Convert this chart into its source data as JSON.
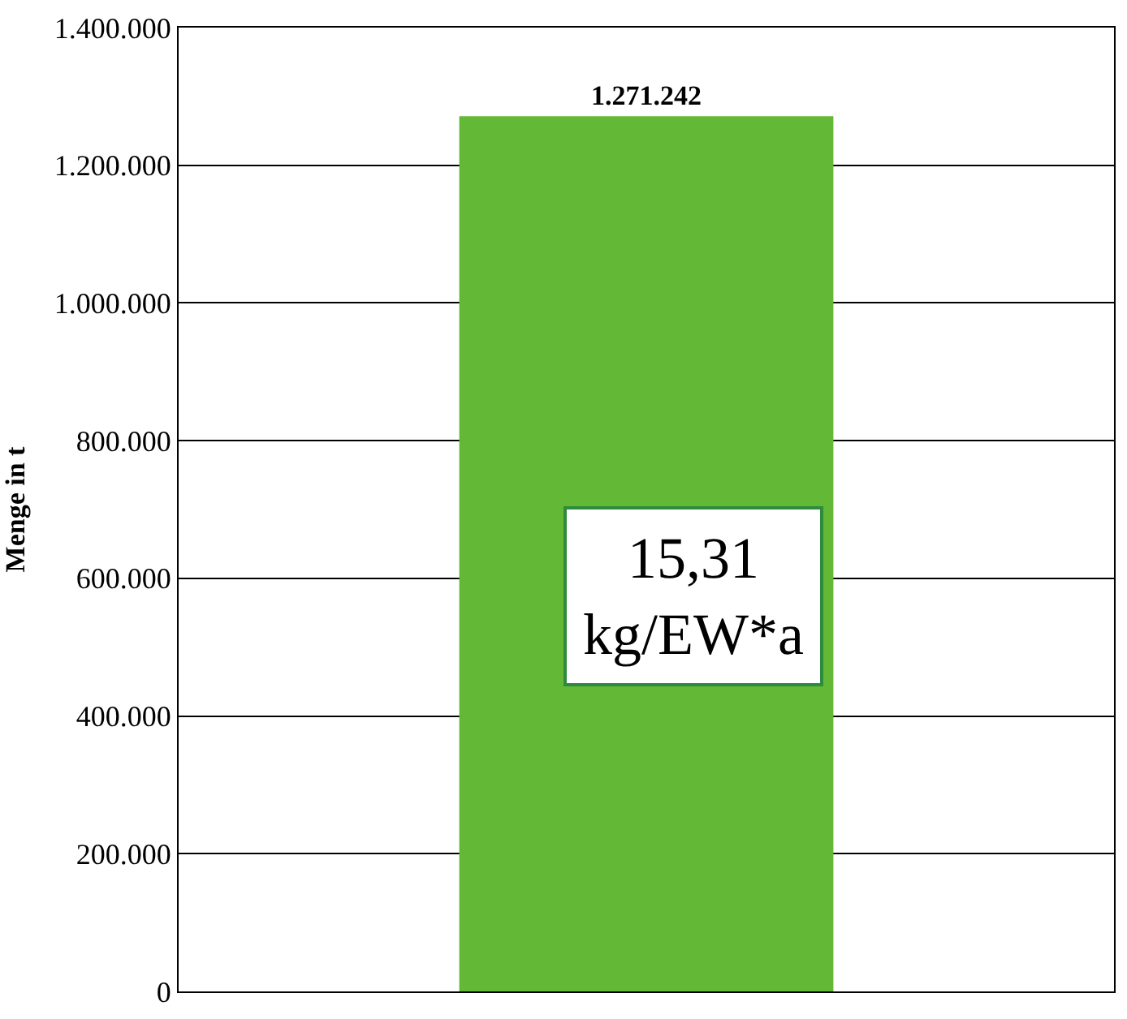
{
  "chart_data": {
    "type": "bar",
    "ylabel": "Menge in t",
    "categories": [
      null
    ],
    "values": [
      1271242
    ],
    "value_labels": [
      "1.271.242"
    ],
    "color": "#63b935",
    "ylim": [
      0,
      1400000
    ],
    "yticks": [
      {
        "value": 0,
        "label": "0"
      },
      {
        "value": 200000,
        "label": "200.000"
      },
      {
        "value": 400000,
        "label": "400.000"
      },
      {
        "value": 600000,
        "label": "600.000"
      },
      {
        "value": 800000,
        "label": "800.000"
      },
      {
        "value": 1000000,
        "label": "1.000.000"
      },
      {
        "value": 1200000,
        "label": "1.200.000"
      },
      {
        "value": 1400000,
        "label": "1.400.000"
      }
    ],
    "grid": "y",
    "annotations": [
      "15,31\nkg/EW*a"
    ]
  }
}
